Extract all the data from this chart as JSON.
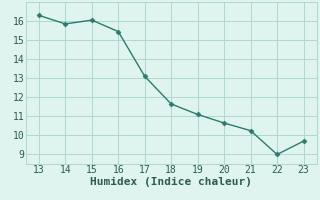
{
  "x": [
    13,
    14,
    15,
    16,
    17,
    18,
    19,
    20,
    21,
    22,
    23
  ],
  "y": [
    16.3,
    15.85,
    16.05,
    15.45,
    13.1,
    11.65,
    11.1,
    10.65,
    10.25,
    9.0,
    9.7
  ],
  "line_color": "#2d7a6e",
  "marker_color": "#2d7a6e",
  "bg_color": "#dff4ef",
  "grid_color": "#aed8d0",
  "xlabel": "Humidex (Indice chaleur)",
  "xlim": [
    12.5,
    23.5
  ],
  "ylim": [
    8.5,
    17.0
  ],
  "xticks": [
    13,
    14,
    15,
    16,
    17,
    18,
    19,
    20,
    21,
    22,
    23
  ],
  "yticks": [
    9,
    10,
    11,
    12,
    13,
    14,
    15,
    16
  ],
  "tick_fontsize": 7,
  "xlabel_fontsize": 8
}
